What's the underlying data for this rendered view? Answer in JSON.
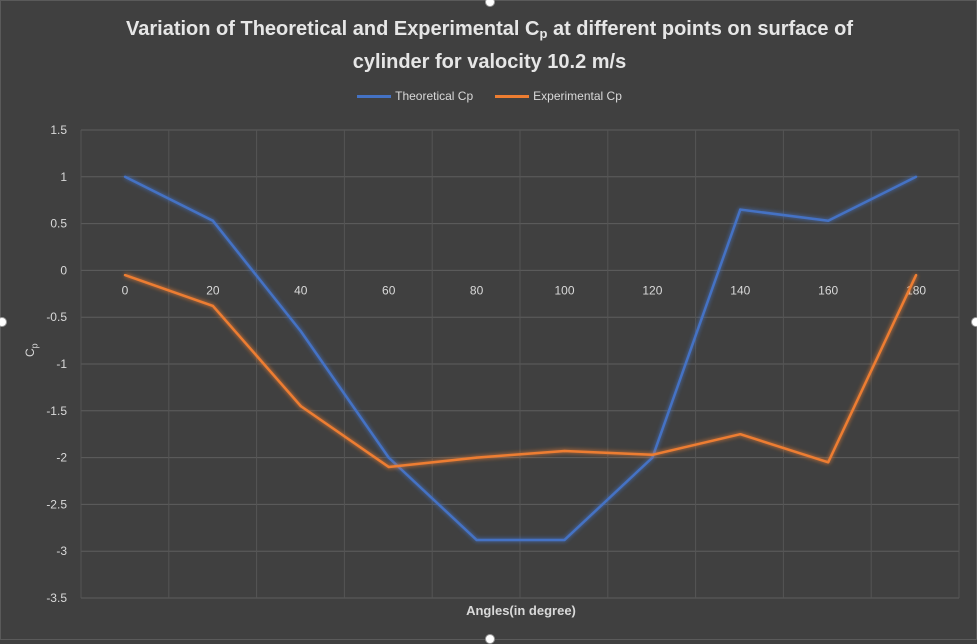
{
  "chart_data": {
    "type": "line",
    "title_part1": "Variation of Theoretical and Experimental C",
    "title_sub": "p",
    "title_part2": " at different points on surface of",
    "title_line2": "cylinder for valocity 10.2 m/s",
    "xlabel": "Angles(in degree)",
    "ylabel": "Cp",
    "x": [
      0,
      20,
      40,
      60,
      80,
      100,
      120,
      140,
      160,
      180
    ],
    "ylim": [
      -3.5,
      1.5
    ],
    "yticks": [
      1.5,
      1,
      0.5,
      0,
      -0.5,
      -1,
      -1.5,
      -2,
      -2.5,
      -3,
      -3.5
    ],
    "grid": true,
    "legend_position": "top",
    "series": [
      {
        "name": "Theoretical Cp",
        "color": "#4472C4",
        "values": [
          1,
          0.53,
          -0.65,
          -2,
          -2.88,
          -2.88,
          -2,
          0.65,
          0.53,
          1
        ]
      },
      {
        "name": "Experimental Cp",
        "color": "#ED7D31",
        "values": [
          -0.05,
          -0.38,
          -1.45,
          -2.1,
          -2,
          -1.93,
          -1.97,
          -1.75,
          -2.05,
          -0.05
        ]
      }
    ]
  }
}
